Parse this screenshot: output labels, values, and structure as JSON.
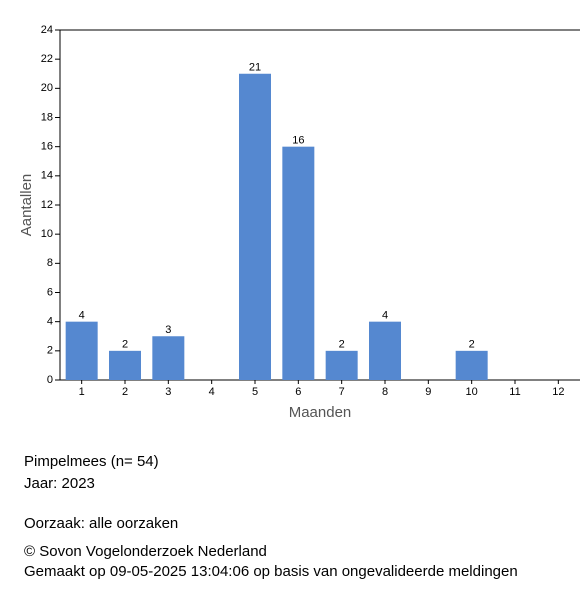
{
  "chart_data": {
    "type": "bar",
    "x_label": "Maanden",
    "y_label": "Aantallen",
    "categories": [
      "1",
      "2",
      "3",
      "4",
      "5",
      "6",
      "7",
      "8",
      "9",
      "10",
      "11",
      "12"
    ],
    "values": [
      4,
      2,
      3,
      null,
      21,
      16,
      2,
      4,
      null,
      2,
      null,
      null
    ],
    "color": "#5588d0",
    "ylim": [
      0,
      24
    ],
    "yticks": [
      0,
      2,
      4,
      6,
      8,
      10,
      12,
      14,
      16,
      18,
      20,
      22,
      24
    ]
  },
  "info": {
    "species": "Pimpelmees  (n= 54)",
    "year": "Jaar: 2023",
    "cause": "Oorzaak: alle oorzaken",
    "copyright": "© Sovon Vogelonderzoek Nederland",
    "created": "Gemaakt op 09-05-2025 13:04:06 op basis van ongevalideerde meldingen"
  }
}
